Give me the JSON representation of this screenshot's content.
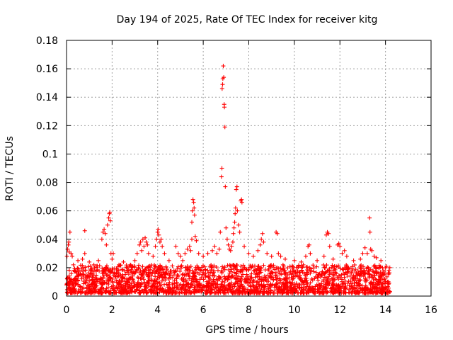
{
  "chart_data": {
    "type": "scatter",
    "title": "Day 194 of 2025, Rate Of TEC Index for receiver kitg",
    "xlabel": "GPS time / hours",
    "ylabel": "ROTI / TECUs",
    "xlim": [
      0,
      16
    ],
    "ylim": [
      0,
      0.18
    ],
    "xticks": [
      0,
      2,
      4,
      6,
      8,
      10,
      12,
      14,
      16
    ],
    "xtick_labels": [
      "0",
      "2",
      "4",
      "6",
      "8",
      "10",
      "12",
      "14",
      "16"
    ],
    "yticks": [
      0,
      0.02,
      0.04,
      0.06,
      0.08,
      0.1,
      0.12,
      0.14,
      0.16,
      0.18
    ],
    "ytick_labels": [
      "0",
      "0.02",
      "0.04",
      "0.06",
      "0.08",
      "0.1",
      "0.12",
      "0.14",
      "0.16",
      "0.18"
    ],
    "grid": true,
    "marker": "+",
    "series": [
      {
        "name": "ROTI",
        "color": "#ff0000",
        "baseline_band": {
          "x_range": [
            0,
            14.2
          ],
          "y_range": [
            0.002,
            0.022
          ]
        },
        "points": [
          [
            0.02,
            0.028
          ],
          [
            0.05,
            0.033
          ],
          [
            0.08,
            0.036
          ],
          [
            0.1,
            0.038
          ],
          [
            0.12,
            0.031
          ],
          [
            0.15,
            0.045
          ],
          [
            0.2,
            0.03
          ],
          [
            0.25,
            0.028
          ],
          [
            0.3,
            0.022
          ],
          [
            0.5,
            0.025
          ],
          [
            0.7,
            0.026
          ],
          [
            0.8,
            0.046
          ],
          [
            0.8,
            0.03
          ],
          [
            1.0,
            0.024
          ],
          [
            1.2,
            0.022
          ],
          [
            1.4,
            0.025
          ],
          [
            1.55,
            0.04
          ],
          [
            1.6,
            0.045
          ],
          [
            1.65,
            0.047
          ],
          [
            1.7,
            0.044
          ],
          [
            1.75,
            0.036
          ],
          [
            1.8,
            0.05
          ],
          [
            1.85,
            0.055
          ],
          [
            1.88,
            0.058
          ],
          [
            1.9,
            0.059
          ],
          [
            1.92,
            0.053
          ],
          [
            1.95,
            0.03
          ],
          [
            2.0,
            0.026
          ],
          [
            2.05,
            0.03
          ],
          [
            2.3,
            0.022
          ],
          [
            2.5,
            0.024
          ],
          [
            2.8,
            0.022
          ],
          [
            3.0,
            0.025
          ],
          [
            3.1,
            0.03
          ],
          [
            3.2,
            0.036
          ],
          [
            3.25,
            0.038
          ],
          [
            3.3,
            0.032
          ],
          [
            3.35,
            0.04
          ],
          [
            3.4,
            0.035
          ],
          [
            3.45,
            0.041
          ],
          [
            3.5,
            0.038
          ],
          [
            3.55,
            0.036
          ],
          [
            3.6,
            0.03
          ],
          [
            3.8,
            0.028
          ],
          [
            3.9,
            0.035
          ],
          [
            3.95,
            0.04
          ],
          [
            4.0,
            0.045
          ],
          [
            4.02,
            0.047
          ],
          [
            4.05,
            0.043
          ],
          [
            4.1,
            0.038
          ],
          [
            4.15,
            0.04
          ],
          [
            4.2,
            0.035
          ],
          [
            4.3,
            0.03
          ],
          [
            4.5,
            0.025
          ],
          [
            4.8,
            0.035
          ],
          [
            4.9,
            0.03
          ],
          [
            5.0,
            0.028
          ],
          [
            5.1,
            0.025
          ],
          [
            5.2,
            0.03
          ],
          [
            5.3,
            0.033
          ],
          [
            5.4,
            0.035
          ],
          [
            5.45,
            0.032
          ],
          [
            5.5,
            0.04
          ],
          [
            5.5,
            0.052
          ],
          [
            5.52,
            0.06
          ],
          [
            5.55,
            0.068
          ],
          [
            5.58,
            0.066
          ],
          [
            5.6,
            0.062
          ],
          [
            5.62,
            0.057
          ],
          [
            5.65,
            0.042
          ],
          [
            5.7,
            0.039
          ],
          [
            5.8,
            0.03
          ],
          [
            6.0,
            0.028
          ],
          [
            6.2,
            0.03
          ],
          [
            6.4,
            0.032
          ],
          [
            6.5,
            0.035
          ],
          [
            6.6,
            0.03
          ],
          [
            6.7,
            0.033
          ],
          [
            6.75,
            0.045
          ],
          [
            6.8,
            0.084
          ],
          [
            6.82,
            0.09
          ],
          [
            6.83,
            0.146
          ],
          [
            6.85,
            0.149
          ],
          [
            6.86,
            0.153
          ],
          [
            6.88,
            0.162
          ],
          [
            6.9,
            0.154
          ],
          [
            6.92,
            0.135
          ],
          [
            6.93,
            0.133
          ],
          [
            6.95,
            0.119
          ],
          [
            6.97,
            0.077
          ],
          [
            7.0,
            0.048
          ],
          [
            7.05,
            0.04
          ],
          [
            7.1,
            0.036
          ],
          [
            7.15,
            0.033
          ],
          [
            7.2,
            0.032
          ],
          [
            7.25,
            0.035
          ],
          [
            7.3,
            0.038
          ],
          [
            7.32,
            0.044
          ],
          [
            7.35,
            0.048
          ],
          [
            7.38,
            0.052
          ],
          [
            7.4,
            0.058
          ],
          [
            7.42,
            0.062
          ],
          [
            7.45,
            0.075
          ],
          [
            7.48,
            0.077
          ],
          [
            7.5,
            0.06
          ],
          [
            7.55,
            0.05
          ],
          [
            7.6,
            0.045
          ],
          [
            7.65,
            0.067
          ],
          [
            7.68,
            0.068
          ],
          [
            7.7,
            0.066
          ],
          [
            7.8,
            0.035
          ],
          [
            8.0,
            0.03
          ],
          [
            8.2,
            0.028
          ],
          [
            8.4,
            0.032
          ],
          [
            8.5,
            0.036
          ],
          [
            8.55,
            0.04
          ],
          [
            8.6,
            0.044
          ],
          [
            8.65,
            0.038
          ],
          [
            8.8,
            0.03
          ],
          [
            9.0,
            0.028
          ],
          [
            9.2,
            0.045
          ],
          [
            9.25,
            0.044
          ],
          [
            9.3,
            0.03
          ],
          [
            9.4,
            0.028
          ],
          [
            9.6,
            0.026
          ],
          [
            10.0,
            0.025
          ],
          [
            10.3,
            0.024
          ],
          [
            10.5,
            0.028
          ],
          [
            10.6,
            0.035
          ],
          [
            10.65,
            0.036
          ],
          [
            10.7,
            0.03
          ],
          [
            11.0,
            0.025
          ],
          [
            11.3,
            0.028
          ],
          [
            11.4,
            0.043
          ],
          [
            11.45,
            0.045
          ],
          [
            11.5,
            0.044
          ],
          [
            11.55,
            0.035
          ],
          [
            11.7,
            0.026
          ],
          [
            11.9,
            0.036
          ],
          [
            11.95,
            0.037
          ],
          [
            12.0,
            0.035
          ],
          [
            12.1,
            0.03
          ],
          [
            12.2,
            0.032
          ],
          [
            12.3,
            0.028
          ],
          [
            12.6,
            0.025
          ],
          [
            12.9,
            0.026
          ],
          [
            13.0,
            0.03
          ],
          [
            13.1,
            0.034
          ],
          [
            13.2,
            0.03
          ],
          [
            13.3,
            0.055
          ],
          [
            13.32,
            0.045
          ],
          [
            13.35,
            0.033
          ],
          [
            13.4,
            0.032
          ],
          [
            13.5,
            0.028
          ],
          [
            13.6,
            0.027
          ],
          [
            13.8,
            0.025
          ],
          [
            14.0,
            0.02
          ],
          [
            14.15,
            0.018
          ]
        ]
      }
    ]
  }
}
